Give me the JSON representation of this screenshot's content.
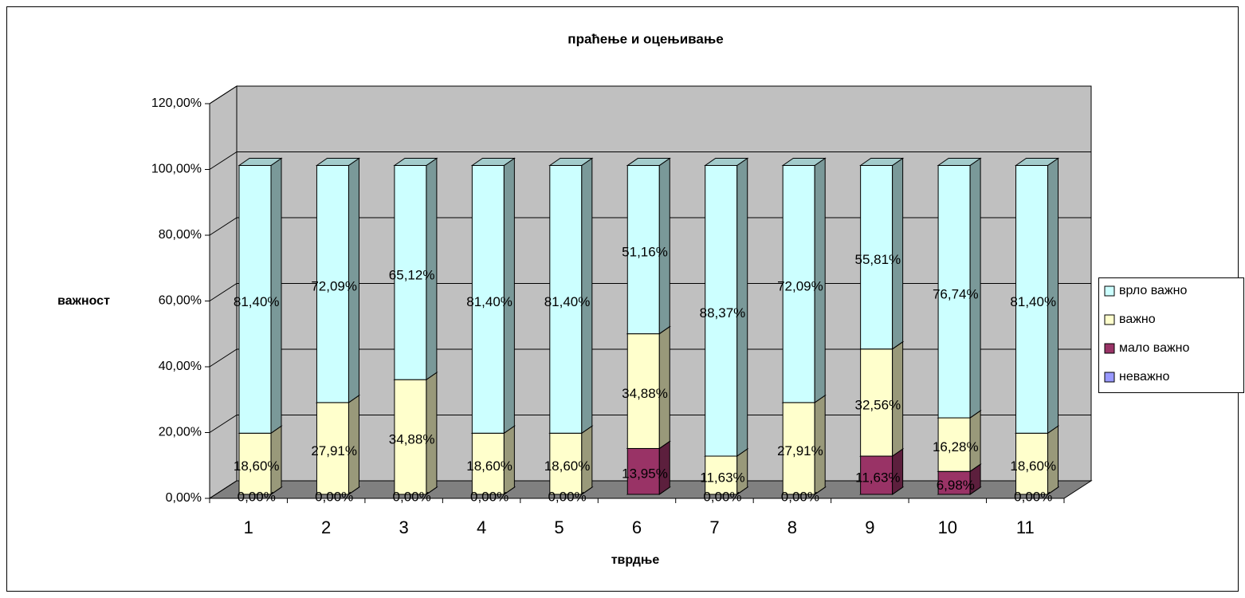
{
  "chart_data": {
    "type": "bar3d_stacked",
    "title": "праћење и оцењивање",
    "x_label": "тврдње",
    "y_label": "важност",
    "categories": [
      "1",
      "2",
      "3",
      "4",
      "5",
      "6",
      "7",
      "8",
      "9",
      "10",
      "11"
    ],
    "series": [
      {
        "name": "неважно",
        "color": "#9999FF",
        "values": [
          0,
          0,
          0,
          0,
          0,
          0,
          0,
          0,
          0,
          0,
          0
        ]
      },
      {
        "name": "мало важно",
        "color": "#993366",
        "values": [
          0,
          0,
          0,
          0,
          0,
          13.95,
          0,
          0,
          11.63,
          6.98,
          0
        ],
        "value_labels": [
          "0,00%",
          "0,00%",
          "0,00%",
          "0,00%",
          "0,00%",
          "13,95%",
          "0,00%",
          "0,00%",
          "11,63%",
          "6,98%",
          "0,00%"
        ]
      },
      {
        "name": "важно",
        "color": "#FFFFCC",
        "values": [
          18.6,
          27.91,
          34.88,
          18.6,
          18.6,
          34.88,
          11.63,
          27.91,
          32.56,
          16.28,
          18.6
        ],
        "value_labels": [
          "18,60%",
          "27,91%",
          "34,88%",
          "18,60%",
          "18,60%",
          "34,88%",
          "11,63%",
          "27,91%",
          "32,56%",
          "16,28%",
          "18,60%"
        ]
      },
      {
        "name": "врло важно",
        "color": "#CCFFFF",
        "values": [
          81.4,
          72.09,
          65.12,
          81.4,
          81.4,
          51.16,
          88.37,
          72.09,
          55.81,
          76.74,
          81.4
        ],
        "value_labels": [
          "81,40%",
          "72,09%",
          "65,12%",
          "81,40%",
          "81,40%",
          "51,16%",
          "88,37%",
          "72,09%",
          "55,81%",
          "76,74%",
          "81,40%"
        ]
      }
    ],
    "ylim": [
      0,
      120
    ],
    "yticks": [
      {
        "value": 0,
        "label": "0,00%"
      },
      {
        "value": 20,
        "label": "20,00%"
      },
      {
        "value": 40,
        "label": "40,00%"
      },
      {
        "value": 60,
        "label": "60,00%"
      },
      {
        "value": 80,
        "label": "80,00%"
      },
      {
        "value": 100,
        "label": "100,00%"
      },
      {
        "value": 120,
        "label": "120,00%"
      }
    ],
    "grid": true,
    "legend": "right",
    "wall_color": "#C0C0C0",
    "floor_color": "#808080"
  }
}
